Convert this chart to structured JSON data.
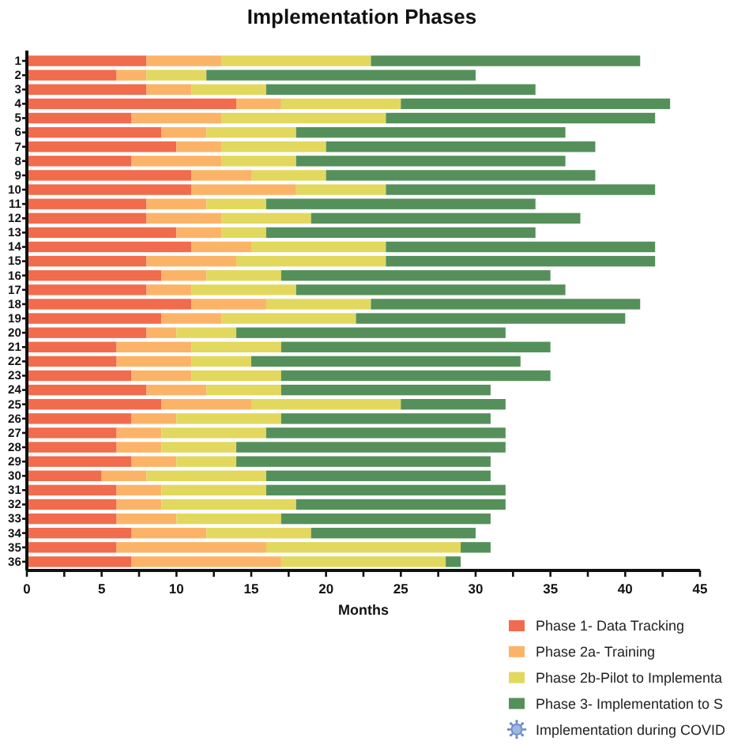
{
  "chart_data": {
    "type": "bar",
    "orientation": "horizontal",
    "stacked": true,
    "title": "Implementation Phases",
    "xlabel": "Months",
    "categories": [
      "1",
      "2",
      "3",
      "4",
      "5",
      "6",
      "7",
      "8",
      "9",
      "10",
      "11",
      "12",
      "13",
      "14",
      "15",
      "16",
      "17",
      "18",
      "19",
      "20",
      "21",
      "22",
      "23",
      "24",
      "25",
      "26",
      "27",
      "28",
      "29",
      "30",
      "31",
      "32",
      "33",
      "34",
      "35",
      "36"
    ],
    "series": [
      {
        "name": "Phase 1- Data Tracking",
        "color": "#f16b4d",
        "values": [
          8,
          6,
          8,
          14,
          7,
          9,
          10,
          7,
          11,
          11,
          8,
          8,
          10,
          11,
          8,
          9,
          8,
          11,
          9,
          8,
          6,
          6,
          7,
          8,
          9,
          7,
          6,
          6,
          7,
          5,
          6,
          6,
          6,
          7,
          6,
          7
        ]
      },
      {
        "name": "Phase 2a- Training",
        "color": "#fbb467",
        "values": [
          5,
          2,
          3,
          3,
          6,
          3,
          3,
          6,
          4,
          7,
          4,
          5,
          3,
          4,
          6,
          3,
          3,
          5,
          4,
          2,
          5,
          5,
          4,
          4,
          6,
          3,
          3,
          3,
          3,
          3,
          3,
          3,
          4,
          5,
          10,
          10
        ]
      },
      {
        "name": "Phase 2b-Pilot to Implementa",
        "color": "#e2d85e",
        "values": [
          10,
          4,
          5,
          8,
          11,
          6,
          7,
          5,
          5,
          6,
          4,
          6,
          3,
          9,
          10,
          5,
          7,
          7,
          9,
          4,
          6,
          4,
          6,
          5,
          10,
          7,
          7,
          5,
          4,
          8,
          7,
          9,
          7,
          7,
          13,
          11
        ]
      },
      {
        "name": "Phase 3- Implementation to S",
        "color": "#55905b",
        "values": [
          18,
          18,
          18,
          18,
          18,
          18,
          18,
          18,
          18,
          18,
          18,
          18,
          18,
          18,
          18,
          18,
          18,
          18,
          18,
          18,
          18,
          18,
          18,
          14,
          7,
          14,
          16,
          18,
          17,
          15,
          16,
          14,
          14,
          11,
          2,
          1
        ]
      }
    ],
    "xlim": [
      0,
      45
    ],
    "xticks": [
      0,
      {
        "value": 2.5,
        "label": null
      },
      5,
      {
        "value": 7.5,
        "label": null
      },
      10,
      {
        "value": 12.5,
        "label": null
      },
      15,
      {
        "value": 17.5,
        "label": null
      },
      20,
      {
        "value": 22.5,
        "label": null
      },
      25,
      {
        "value": 27.5,
        "label": null
      },
      30,
      {
        "value": 32.5,
        "label": null
      },
      35,
      {
        "value": 37.5,
        "label": null
      },
      40,
      {
        "value": 42.5,
        "label": null
      },
      45
    ],
    "legend": "bottom right",
    "annotations": [
      "Implementation during COVID"
    ]
  }
}
